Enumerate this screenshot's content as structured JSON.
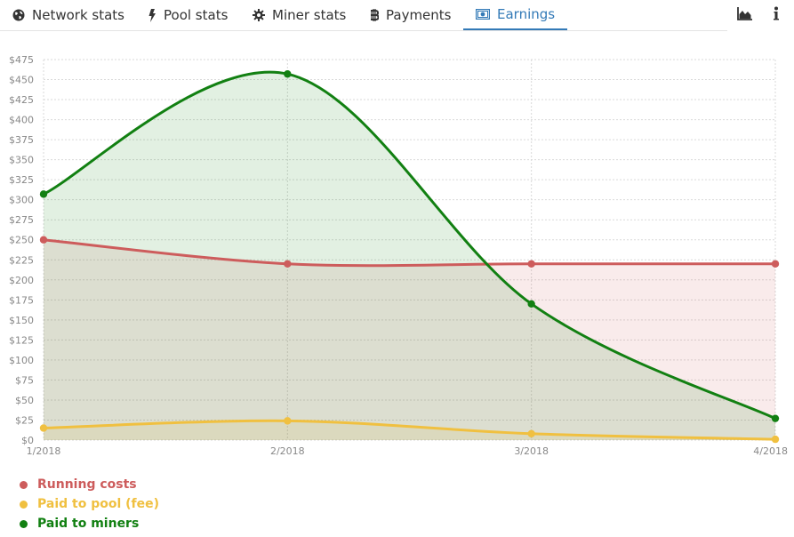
{
  "tabs": [
    {
      "label": "Network stats",
      "icon": "globe-icon"
    },
    {
      "label": "Pool stats",
      "icon": "bolt-icon"
    },
    {
      "label": "Miner stats",
      "icon": "gear-icon"
    },
    {
      "label": "Payments",
      "icon": "bitcoin-icon"
    },
    {
      "label": "Earnings",
      "icon": "money-icon",
      "active": true
    }
  ],
  "toolbar": {
    "chart_icon": "area-chart-icon",
    "info_icon": "info-icon"
  },
  "colors": {
    "accent": "#337ab7",
    "running": "#cd5c5c",
    "pool": "#f0c040",
    "miners": "#128012"
  },
  "chart_data": {
    "type": "area",
    "categories": [
      "1/2018",
      "2/2018",
      "3/2018",
      "4/2018"
    ],
    "yticks": [
      "$0",
      "$25",
      "$50",
      "$75",
      "$100",
      "$125",
      "$150",
      "$175",
      "$200",
      "$225",
      "$250",
      "$275",
      "$300",
      "$325",
      "$350",
      "$375",
      "$400",
      "$425",
      "$450",
      "$475"
    ],
    "ylim": [
      0,
      475
    ],
    "grid": true,
    "legend_position": "bottom-left",
    "series": [
      {
        "name": "Running costs",
        "values": [
          250,
          220,
          220,
          220
        ],
        "color": "#cd5c5c",
        "fill": "#f3dede"
      },
      {
        "name": "Paid to pool (fee)",
        "values": [
          15,
          24,
          8,
          1
        ],
        "color": "#f0c040",
        "fill": "#ede6b8"
      },
      {
        "name": "Paid to miners",
        "values": [
          307,
          457,
          170,
          27
        ],
        "color": "#128012",
        "fill": "#dff0db"
      }
    ]
  }
}
